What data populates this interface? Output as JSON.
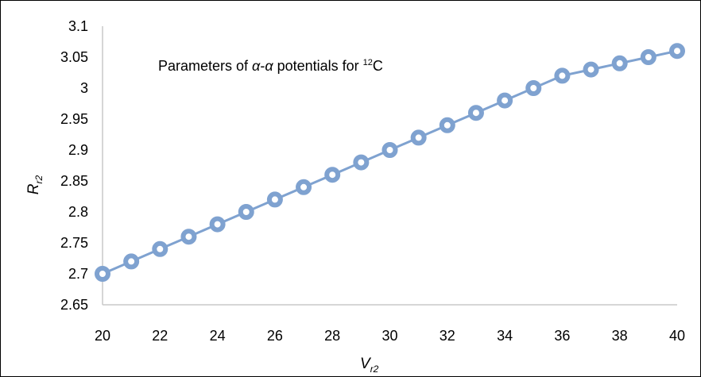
{
  "chart_data": {
    "type": "line",
    "title": {
      "prefix": "Parameters of ",
      "alpha1": "α",
      "dash": "-",
      "alpha2": "α",
      "middle": " potentials for ",
      "superscript": "12",
      "element": "C"
    },
    "xlabel": {
      "main": "V",
      "subscript": "r2"
    },
    "ylabel": {
      "main": "R",
      "subscript": "r2"
    },
    "xlim": [
      20,
      40
    ],
    "ylim": [
      2.65,
      3.1
    ],
    "x_ticks": [
      "20",
      "22",
      "24",
      "26",
      "28",
      "30",
      "32",
      "34",
      "36",
      "38",
      "40"
    ],
    "y_ticks": [
      "2.65",
      "2.7",
      "2.75",
      "2.8",
      "2.85",
      "2.9",
      "2.95",
      "3",
      "3.05",
      "3.1"
    ],
    "grid": false,
    "legend": "none",
    "series": [
      {
        "x": [
          20,
          21,
          22,
          23,
          24,
          25,
          26,
          27,
          28,
          29,
          30,
          31,
          32,
          33,
          34,
          35,
          36,
          37,
          38,
          39,
          40
        ],
        "y": [
          2.7,
          2.72,
          2.74,
          2.76,
          2.78,
          2.8,
          2.82,
          2.84,
          2.86,
          2.88,
          2.9,
          2.92,
          2.94,
          2.96,
          2.98,
          3.0,
          3.02,
          3.03,
          3.04,
          3.05,
          3.06
        ]
      }
    ],
    "colors": {
      "series": "#7fa2d0",
      "axis": "#c8c8c8",
      "marker_fill": "#ffffff"
    }
  }
}
